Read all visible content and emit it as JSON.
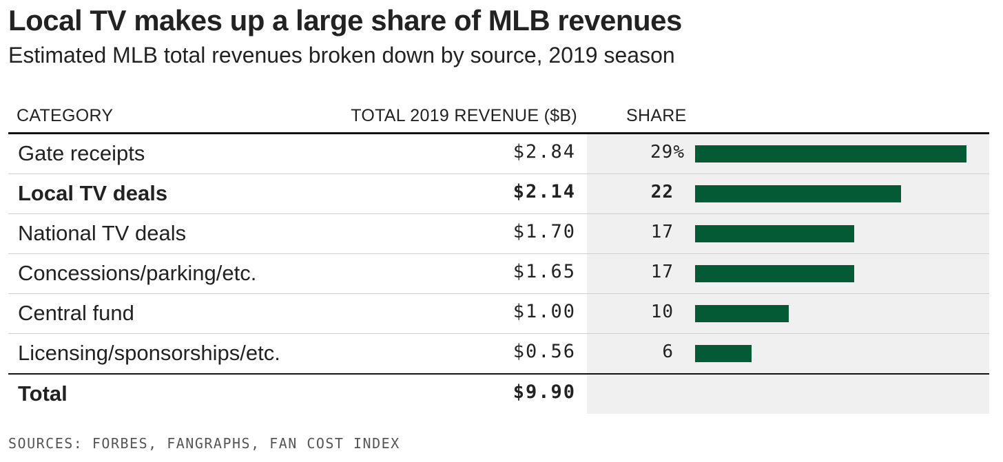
{
  "title": "Local TV makes up a large share of MLB revenues",
  "subtitle": "Estimated MLB total revenues broken down by source, 2019 season",
  "headers": {
    "category": "CATEGORY",
    "revenue": "TOTAL 2019 REVENUE ($B)",
    "share": "SHARE"
  },
  "bar_color": "#055a36",
  "source": "SOURCES: FORBES, FANGRAPHS, FAN COST INDEX",
  "chart_data": {
    "type": "table",
    "columns": [
      "CATEGORY",
      "TOTAL 2019 REVENUE ($B)",
      "SHARE"
    ],
    "rows": [
      {
        "category": "Gate receipts",
        "revenue": "$2.84",
        "share_label": "29%",
        "share": 29,
        "bold": false
      },
      {
        "category": "Local TV deals",
        "revenue": "$2.14",
        "share_label": "22",
        "share": 22,
        "bold": true
      },
      {
        "category": "National TV deals",
        "revenue": "$1.70",
        "share_label": "17",
        "share": 17,
        "bold": false
      },
      {
        "category": "Concessions/parking/etc.",
        "revenue": "$1.65",
        "share_label": "17",
        "share": 17,
        "bold": false
      },
      {
        "category": "Central fund",
        "revenue": "$1.00",
        "share_label": "10",
        "share": 10,
        "bold": false
      },
      {
        "category": "Licensing/sponsorships/etc.",
        "revenue": "$0.56",
        "share_label": "6",
        "share": 6,
        "bold": false
      }
    ],
    "total": {
      "category": "Total",
      "revenue": "$9.90"
    }
  }
}
